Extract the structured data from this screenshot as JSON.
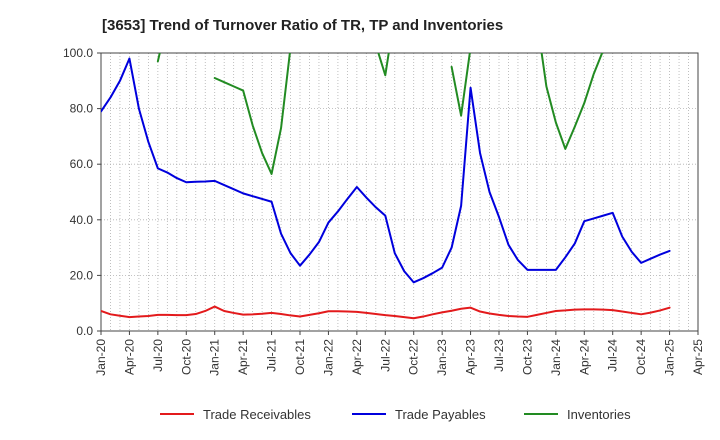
{
  "chart_data": {
    "type": "line",
    "title": "[3653]  Trend of Turnover Ratio of TR, TP and Inventories",
    "xlabel": "",
    "ylabel": "",
    "ylim": [
      0,
      100
    ],
    "xlim": [
      "2020-01",
      "2025-04"
    ],
    "x_tick_labels": [
      "Jan-20",
      "Apr-20",
      "Jul-20",
      "Oct-20",
      "Jan-21",
      "Apr-21",
      "Jul-21",
      "Oct-21",
      "Jan-22",
      "Apr-22",
      "Jul-22",
      "Oct-22",
      "Jan-23",
      "Apr-23",
      "Jul-23",
      "Oct-23",
      "Jan-24",
      "Apr-24",
      "Jul-24",
      "Oct-24",
      "Jan-25",
      "Apr-25"
    ],
    "y_tick_labels": [
      "0.0",
      "20.0",
      "40.0",
      "60.0",
      "80.0",
      "100.0"
    ],
    "y_ticks": [
      0,
      20,
      40,
      60,
      80,
      100
    ],
    "grid": true,
    "legend_position": "bottom",
    "x": [
      "2020-01",
      "2020-02",
      "2020-03",
      "2020-04",
      "2020-05",
      "2020-06",
      "2020-07",
      "2020-08",
      "2020-09",
      "2020-10",
      "2020-11",
      "2020-12",
      "2021-01",
      "2021-02",
      "2021-03",
      "2021-04",
      "2021-05",
      "2021-06",
      "2021-07",
      "2021-08",
      "2021-09",
      "2021-10",
      "2021-11",
      "2021-12",
      "2022-01",
      "2022-02",
      "2022-03",
      "2022-04",
      "2022-05",
      "2022-06",
      "2022-07",
      "2022-08",
      "2022-09",
      "2022-10",
      "2022-11",
      "2022-12",
      "2023-01",
      "2023-02",
      "2023-03",
      "2023-04",
      "2023-05",
      "2023-06",
      "2023-07",
      "2023-08",
      "2023-09",
      "2023-10",
      "2023-11",
      "2023-12",
      "2024-01",
      "2024-02",
      "2024-03",
      "2024-04",
      "2024-05",
      "2024-06",
      "2024-07",
      "2024-08",
      "2024-09",
      "2024-10",
      "2024-11",
      "2024-12",
      "2025-01"
    ],
    "series": [
      {
        "name": "Trade Receivables",
        "color": "#e31a1c",
        "values": [
          7.2,
          6.0,
          5.5,
          5.0,
          5.2,
          5.4,
          5.8,
          5.8,
          5.7,
          5.7,
          6.1,
          7.2,
          8.8,
          7.2,
          6.5,
          5.9,
          6.0,
          6.2,
          6.5,
          6.1,
          5.6,
          5.2,
          5.8,
          6.4,
          7.1,
          7.1,
          7.0,
          6.9,
          6.5,
          6.1,
          5.7,
          5.4,
          5.0,
          4.6,
          5.2,
          6.0,
          6.7,
          7.3,
          8.0,
          8.4,
          7.0,
          6.3,
          5.8,
          5.4,
          5.2,
          5.1,
          5.8,
          6.5,
          7.2,
          7.4,
          7.7,
          7.8,
          7.8,
          7.7,
          7.5,
          7.0,
          6.5,
          6.0,
          6.6,
          7.4,
          8.4
        ]
      },
      {
        "name": "Trade Payables",
        "color": "#0000dd",
        "values": [
          79.0,
          84.0,
          90.0,
          98.0,
          80.0,
          68.0,
          58.5,
          57.0,
          55.0,
          53.5,
          53.7,
          53.8,
          54.0,
          52.5,
          51.0,
          49.5,
          48.5,
          47.5,
          46.5,
          35.0,
          28.0,
          23.5,
          27.5,
          32.0,
          39.0,
          43.0,
          47.5,
          51.8,
          48.0,
          44.5,
          41.5,
          28.0,
          21.5,
          17.5,
          19.0,
          20.8,
          22.8,
          30.0,
          45.0,
          87.5,
          64.0,
          50.0,
          41.0,
          31.0,
          25.5,
          22.0,
          22.0,
          22.0,
          22.0,
          26.5,
          31.5,
          39.5,
          40.5,
          41.5,
          42.5,
          34.0,
          28.5,
          24.5,
          26.0,
          27.5,
          28.8
        ]
      },
      {
        "name": "Inventories",
        "color": "#228b22",
        "values": [
          null,
          null,
          null,
          null,
          null,
          null,
          97.0,
          112.0,
          null,
          null,
          null,
          null,
          91.0,
          89.5,
          88.0,
          86.5,
          74.0,
          64.0,
          56.5,
          73.0,
          102.0,
          null,
          null,
          null,
          null,
          null,
          null,
          null,
          null,
          103.0,
          92.0,
          114.0,
          null,
          null,
          null,
          null,
          null,
          95.0,
          77.5,
          102.0,
          null,
          null,
          null,
          null,
          null,
          null,
          112.0,
          88.0,
          75.0,
          65.5,
          73.5,
          82.0,
          92.5,
          101.0,
          null,
          null,
          null,
          null,
          null,
          null,
          null
        ]
      }
    ]
  }
}
